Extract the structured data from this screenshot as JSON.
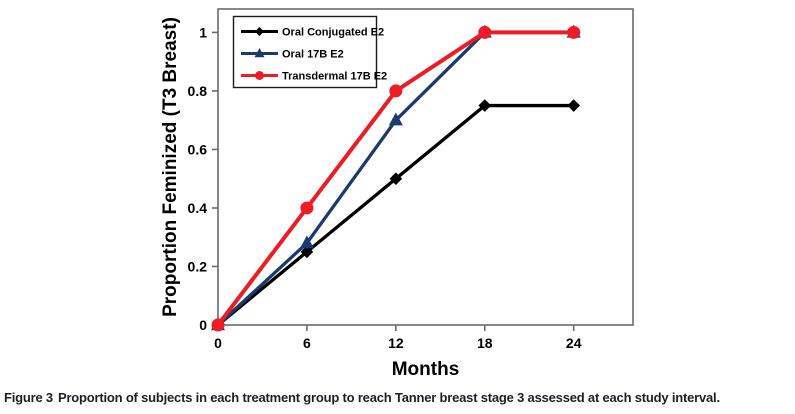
{
  "figure": {
    "caption_label": "Figure 3",
    "caption_text": "Proportion of subjects in each treatment group to reach Tanner breast stage 3 assessed at each study interval."
  },
  "chart_data": {
    "type": "line",
    "title": "",
    "xlabel": "Months",
    "ylabel": "Proportion Feminized (T3 Breast)",
    "x": [
      0,
      6,
      12,
      18,
      24
    ],
    "xtick_values": [
      0,
      6,
      12,
      18,
      24
    ],
    "xtick_labels": [
      "0",
      "6",
      "12",
      "18",
      "24"
    ],
    "ytick_values": [
      0,
      0.2,
      0.4,
      0.6,
      0.8,
      1
    ],
    "ytick_labels": [
      "0",
      "0.2",
      "0.4",
      "0.6",
      "0.8",
      "1"
    ],
    "xlim": [
      0,
      28
    ],
    "ylim": [
      0,
      1.08
    ],
    "grid": false,
    "legend_position": "upper-left-inside",
    "axis_color": "#6b6b6b",
    "text_color": "#000000",
    "legend_border_color": "#1a1a1a",
    "series": [
      {
        "name": "Oral Conjugated E2",
        "marker": "diamond",
        "color": "#000000",
        "values": [
          0,
          0.25,
          0.5,
          0.75,
          0.75
        ]
      },
      {
        "name": "Oral 17B E2",
        "marker": "triangle",
        "color": "#1c3a6e",
        "values": [
          0,
          0.28,
          0.7,
          1,
          1
        ]
      },
      {
        "name": "Transdermal 17B E2",
        "marker": "circle",
        "color": "#ee1c25",
        "values": [
          0,
          0.4,
          0.8,
          1,
          1
        ]
      }
    ]
  }
}
